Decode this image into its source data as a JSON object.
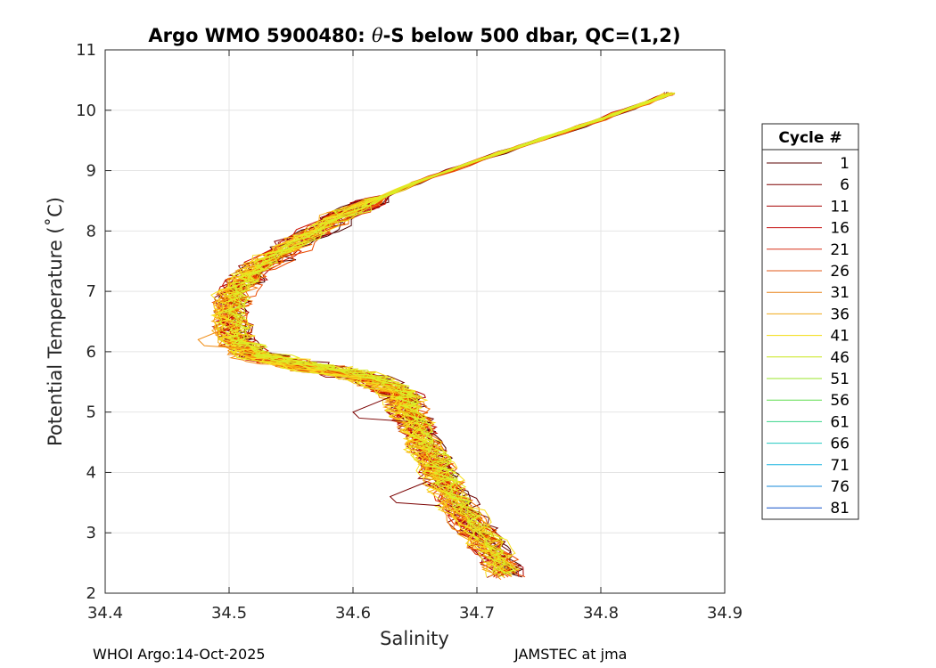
{
  "chart_data": {
    "type": "line",
    "title_prefix": "Argo WMO 5900480: ",
    "title_symbol": "θ",
    "title_suffix": "-S below 500 dbar,  QC=(1,2)",
    "xlabel": "Salinity",
    "ylabel": "Potential Temperature (˚C)",
    "xlim": [
      34.4,
      34.9
    ],
    "ylim": [
      2,
      11
    ],
    "xticks": [
      "34.4",
      "34.5",
      "34.6",
      "34.7",
      "34.8",
      "34.9"
    ],
    "yticks": [
      "2",
      "3",
      "4",
      "5",
      "6",
      "7",
      "8",
      "9",
      "10",
      "11"
    ],
    "grid": true,
    "legend_title": "Cycle #",
    "legend_position": "right",
    "legend_entries": [
      {
        "label": "1",
        "color": "#5a0000"
      },
      {
        "label": "6",
        "color": "#7d0000"
      },
      {
        "label": "11",
        "color": "#a50000"
      },
      {
        "label": "16",
        "color": "#c41010"
      },
      {
        "label": "21",
        "color": "#d83018"
      },
      {
        "label": "26",
        "color": "#e05a1a"
      },
      {
        "label": "31",
        "color": "#e8841a"
      },
      {
        "label": "36",
        "color": "#f0a818"
      },
      {
        "label": "41",
        "color": "#f2dc10"
      },
      {
        "label": "46",
        "color": "#c8e61a"
      },
      {
        "label": "51",
        "color": "#9ae628"
      },
      {
        "label": "56",
        "color": "#60de50"
      },
      {
        "label": "61",
        "color": "#3ad48a"
      },
      {
        "label": "66",
        "color": "#20c8c0"
      },
      {
        "label": "71",
        "color": "#18b4e0"
      },
      {
        "label": "76",
        "color": "#1488d8"
      },
      {
        "label": "81",
        "color": "#1050c8"
      }
    ],
    "profiles_visible": 45,
    "mean_profile": {
      "salinity": [
        34.725,
        34.71,
        34.69,
        34.675,
        34.665,
        34.655,
        34.645,
        34.64,
        34.615,
        34.58,
        34.55,
        34.52,
        34.505,
        34.5,
        34.505,
        34.52,
        34.55,
        34.59,
        34.65,
        34.72,
        34.8,
        34.86
      ],
      "theta": [
        2.3,
        2.8,
        3.3,
        3.8,
        4.2,
        4.6,
        5.0,
        5.3,
        5.55,
        5.7,
        5.8,
        5.95,
        6.2,
        6.6,
        7.0,
        7.35,
        7.75,
        8.25,
        8.8,
        9.3,
        9.85,
        10.3
      ]
    },
    "notable_excursions": [
      {
        "salinity": 34.475,
        "theta": 6.1,
        "note": "fresh outlier near 6.1 C"
      },
      {
        "salinity": 34.6,
        "theta": 4.9,
        "note": "cycle 1 offset near 4.9 C"
      },
      {
        "salinity": 34.63,
        "theta": 3.5,
        "note": "cycle 1 offset near 3.5 C"
      }
    ]
  },
  "footer": {
    "left": "WHOI Argo:14-Oct-2025",
    "right": "JAMSTEC at jma"
  }
}
